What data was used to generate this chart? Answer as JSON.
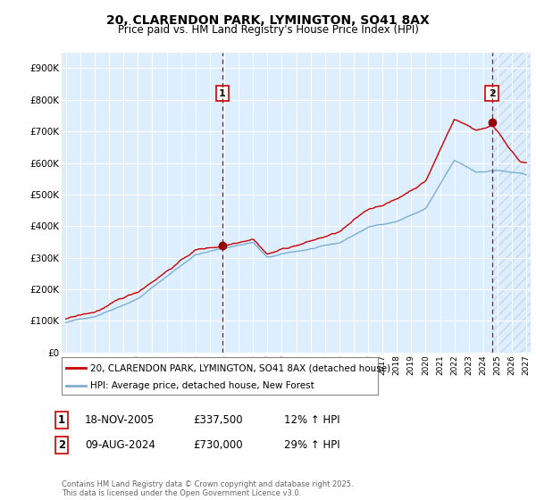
{
  "title": "20, CLARENDON PARK, LYMINGTON, SO41 8AX",
  "subtitle": "Price paid vs. HM Land Registry's House Price Index (HPI)",
  "legend_line1": "20, CLARENDON PARK, LYMINGTON, SO41 8AX (detached house)",
  "legend_line2": "HPI: Average price, detached house, New Forest",
  "sale1_date": "18-NOV-2005",
  "sale1_price": "£337,500",
  "sale1_hpi": "12% ↑ HPI",
  "sale2_date": "09-AUG-2024",
  "sale2_price": "£730,000",
  "sale2_hpi": "29% ↑ HPI",
  "footer": "Contains HM Land Registry data © Crown copyright and database right 2025.\nThis data is licensed under the Open Government Licence v3.0.",
  "line_color_red": "#cc0000",
  "line_color_blue": "#7aafd4",
  "bg_color": "#ffffff",
  "plot_bg_color": "#ddeeff",
  "grid_color": "#ffffff",
  "vline_color": "#cc0000",
  "marker_color": "#990000",
  "ylim": [
    0,
    950000
  ],
  "yticks": [
    0,
    100000,
    200000,
    300000,
    400000,
    500000,
    600000,
    700000,
    800000,
    900000
  ],
  "ytick_labels": [
    "£0",
    "£100K",
    "£200K",
    "£300K",
    "£400K",
    "£500K",
    "£600K",
    "£700K",
    "£800K",
    "£900K"
  ],
  "start_year": 1995,
  "end_year": 2027,
  "sale1_year": 2005.88,
  "sale2_year": 2024.61,
  "sale1_price_val": 337500,
  "sale2_price_val": 730000
}
